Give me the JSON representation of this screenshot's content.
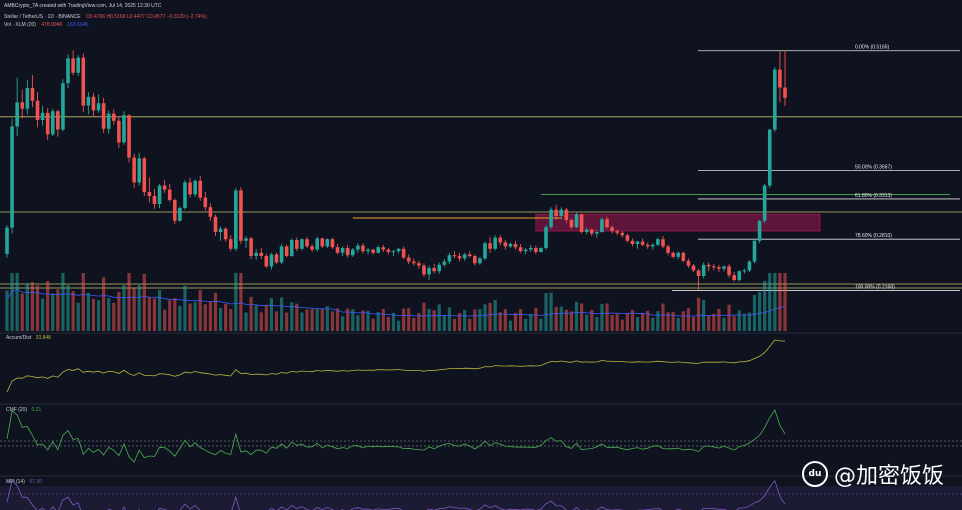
{
  "header": {
    "creator_line": "AMBCrypto_TA created with TradingView.com, Jul 14, 2025 12:30 UTC",
    "symbol_line": "Stellar / TetherUS · 1D · BINANCE",
    "ohlc": "O0.4706  H0.5166  L0.4477  C0.4577  −0.0129 (−2.74%)",
    "vol_line": "Vol · XLM (20)",
    "vol_value": "478.994K",
    "vol_ma": "163.614K"
  },
  "fib_levels": [
    {
      "label": "0.00% (0.5166)",
      "value": 0.5166
    },
    {
      "label": "50.00% (0.3667)",
      "value": 0.3667
    },
    {
      "label": "61.80% (0.3313)",
      "value": 0.3313
    },
    {
      "label": "78.60% (0.2810)",
      "value": 0.281
    },
    {
      "label": "100.00% (0.2168)",
      "value": 0.2168
    }
  ],
  "indicators": [
    {
      "label": "Accum/Dist",
      "value": "33.848"
    },
    {
      "label": "CMF (20)",
      "value": "0.21"
    },
    {
      "label": "MFI (14)",
      "value": "97.30"
    }
  ],
  "watermark": {
    "icon": "du",
    "text": "@加密饭饭"
  },
  "colors": {
    "background": "#0f1320",
    "up": "#26a69a",
    "down": "#ef5350",
    "fib_line": "#e0e0e0",
    "horizontal": "#c8c06a",
    "orange_line": "#f0a020",
    "zone": "#c2185b",
    "ad_line": "#b8b83a",
    "cmf_line": "#4caf50",
    "mfi_line": "#7e57c2",
    "vol_ma": "#3d5afe"
  },
  "chart_data": {
    "type": "candlestick",
    "candles": [
      [
        0.2625,
        0.2985,
        0.258,
        0.2955
      ],
      [
        0.2955,
        0.4315,
        0.288,
        0.422
      ],
      [
        0.422,
        0.483,
        0.41,
        0.452
      ],
      [
        0.452,
        0.468,
        0.432,
        0.444
      ],
      [
        0.444,
        0.48,
        0.437,
        0.47
      ],
      [
        0.47,
        0.486,
        0.446,
        0.454
      ],
      [
        0.454,
        0.465,
        0.421,
        0.43
      ],
      [
        0.43,
        0.448,
        0.423,
        0.439
      ],
      [
        0.439,
        0.445,
        0.405,
        0.412
      ],
      [
        0.412,
        0.444,
        0.41,
        0.441
      ],
      [
        0.441,
        0.443,
        0.409,
        0.418
      ],
      [
        0.418,
        0.481,
        0.416,
        0.476
      ],
      [
        0.476,
        0.512,
        0.47,
        0.507
      ],
      [
        0.507,
        0.517,
        0.486,
        0.489
      ],
      [
        0.489,
        0.511,
        0.485,
        0.508
      ],
      [
        0.508,
        0.513,
        0.44,
        0.448
      ],
      [
        0.448,
        0.465,
        0.437,
        0.459
      ],
      [
        0.459,
        0.464,
        0.435,
        0.442
      ],
      [
        0.442,
        0.462,
        0.439,
        0.451
      ],
      [
        0.451,
        0.458,
        0.414,
        0.419
      ],
      [
        0.419,
        0.442,
        0.413,
        0.438
      ],
      [
        0.438,
        0.443,
        0.424,
        0.429
      ],
      [
        0.429,
        0.434,
        0.395,
        0.402
      ],
      [
        0.402,
        0.441,
        0.399,
        0.436
      ],
      [
        0.436,
        0.437,
        0.377,
        0.383
      ],
      [
        0.383,
        0.388,
        0.345,
        0.352
      ],
      [
        0.352,
        0.389,
        0.348,
        0.382
      ],
      [
        0.382,
        0.384,
        0.335,
        0.34
      ],
      [
        0.34,
        0.358,
        0.327,
        0.335
      ],
      [
        0.335,
        0.344,
        0.319,
        0.325
      ],
      [
        0.325,
        0.35,
        0.32,
        0.348
      ],
      [
        0.348,
        0.355,
        0.339,
        0.343
      ],
      [
        0.343,
        0.35,
        0.328,
        0.33
      ],
      [
        0.33,
        0.332,
        0.3,
        0.304
      ],
      [
        0.304,
        0.322,
        0.303,
        0.32
      ],
      [
        0.32,
        0.355,
        0.318,
        0.352
      ],
      [
        0.352,
        0.358,
        0.333,
        0.337
      ],
      [
        0.337,
        0.356,
        0.334,
        0.354
      ],
      [
        0.354,
        0.36,
        0.329,
        0.333
      ],
      [
        0.333,
        0.34,
        0.317,
        0.321
      ],
      [
        0.321,
        0.326,
        0.304,
        0.309
      ],
      [
        0.309,
        0.312,
        0.285,
        0.29
      ],
      [
        0.29,
        0.297,
        0.279,
        0.294
      ],
      [
        0.294,
        0.296,
        0.278,
        0.281
      ],
      [
        0.281,
        0.286,
        0.266,
        0.269
      ],
      [
        0.269,
        0.345,
        0.266,
        0.342
      ],
      [
        0.342,
        0.346,
        0.275,
        0.279
      ],
      [
        0.279,
        0.285,
        0.27,
        0.282
      ],
      [
        0.282,
        0.284,
        0.256,
        0.26
      ],
      [
        0.26,
        0.269,
        0.255,
        0.264
      ],
      [
        0.264,
        0.27,
        0.256,
        0.26
      ],
      [
        0.26,
        0.263,
        0.245,
        0.247
      ],
      [
        0.247,
        0.264,
        0.243,
        0.262
      ],
      [
        0.262,
        0.264,
        0.25,
        0.252
      ],
      [
        0.252,
        0.275,
        0.25,
        0.272
      ],
      [
        0.272,
        0.274,
        0.258,
        0.26
      ],
      [
        0.26,
        0.282,
        0.259,
        0.28
      ],
      [
        0.28,
        0.283,
        0.266,
        0.269
      ],
      [
        0.269,
        0.282,
        0.267,
        0.281
      ],
      [
        0.281,
        0.284,
        0.27,
        0.272
      ],
      [
        0.272,
        0.275,
        0.265,
        0.268
      ],
      [
        0.268,
        0.284,
        0.266,
        0.282
      ],
      [
        0.282,
        0.283,
        0.27,
        0.272
      ],
      [
        0.272,
        0.282,
        0.27,
        0.281
      ],
      [
        0.281,
        0.283,
        0.269,
        0.271
      ],
      [
        0.271,
        0.275,
        0.262,
        0.264
      ],
      [
        0.264,
        0.272,
        0.26,
        0.27
      ],
      [
        0.27,
        0.274,
        0.258,
        0.261
      ],
      [
        0.261,
        0.27,
        0.259,
        0.268
      ],
      [
        0.268,
        0.276,
        0.264,
        0.273
      ],
      [
        0.273,
        0.276,
        0.263,
        0.266
      ],
      [
        0.266,
        0.27,
        0.262,
        0.268
      ],
      [
        0.268,
        0.269,
        0.262,
        0.264
      ],
      [
        0.264,
        0.273,
        0.263,
        0.271
      ],
      [
        0.271,
        0.274,
        0.265,
        0.268
      ],
      [
        0.268,
        0.27,
        0.262,
        0.265
      ],
      [
        0.265,
        0.268,
        0.26,
        0.266
      ],
      [
        0.266,
        0.27,
        0.263,
        0.269
      ],
      [
        0.269,
        0.272,
        0.256,
        0.258
      ],
      [
        0.258,
        0.262,
        0.25,
        0.253
      ],
      [
        0.253,
        0.257,
        0.248,
        0.251
      ],
      [
        0.251,
        0.254,
        0.244,
        0.248
      ],
      [
        0.248,
        0.251,
        0.234,
        0.237
      ],
      [
        0.237,
        0.248,
        0.23,
        0.245
      ],
      [
        0.245,
        0.25,
        0.238,
        0.241
      ],
      [
        0.241,
        0.252,
        0.238,
        0.249
      ],
      [
        0.249,
        0.256,
        0.246,
        0.253
      ],
      [
        0.253,
        0.264,
        0.25,
        0.261
      ],
      [
        0.261,
        0.266,
        0.257,
        0.26
      ],
      [
        0.26,
        0.264,
        0.253,
        0.257
      ],
      [
        0.257,
        0.264,
        0.254,
        0.262
      ],
      [
        0.262,
        0.266,
        0.258,
        0.26
      ],
      [
        0.26,
        0.262,
        0.248,
        0.251
      ],
      [
        0.251,
        0.259,
        0.249,
        0.257
      ],
      [
        0.257,
        0.278,
        0.255,
        0.276
      ],
      [
        0.276,
        0.284,
        0.264,
        0.269
      ],
      [
        0.269,
        0.286,
        0.267,
        0.283
      ],
      [
        0.283,
        0.286,
        0.273,
        0.277
      ],
      [
        0.277,
        0.28,
        0.268,
        0.272
      ],
      [
        0.272,
        0.277,
        0.27,
        0.275
      ],
      [
        0.275,
        0.279,
        0.268,
        0.271
      ],
      [
        0.271,
        0.275,
        0.264,
        0.266
      ],
      [
        0.266,
        0.27,
        0.262,
        0.268
      ],
      [
        0.268,
        0.274,
        0.265,
        0.27
      ],
      [
        0.27,
        0.273,
        0.262,
        0.265
      ],
      [
        0.265,
        0.271,
        0.264,
        0.27
      ],
      [
        0.27,
        0.299,
        0.268,
        0.296
      ],
      [
        0.296,
        0.321,
        0.294,
        0.318
      ],
      [
        0.318,
        0.324,
        0.305,
        0.31
      ],
      [
        0.31,
        0.321,
        0.306,
        0.318
      ],
      [
        0.318,
        0.32,
        0.301,
        0.305
      ],
      [
        0.305,
        0.307,
        0.294,
        0.296
      ],
      [
        0.296,
        0.314,
        0.295,
        0.312
      ],
      [
        0.312,
        0.313,
        0.288,
        0.29
      ],
      [
        0.29,
        0.295,
        0.287,
        0.293
      ],
      [
        0.293,
        0.294,
        0.285,
        0.288
      ],
      [
        0.288,
        0.292,
        0.283,
        0.29
      ],
      [
        0.29,
        0.308,
        0.289,
        0.306
      ],
      [
        0.306,
        0.309,
        0.294,
        0.296
      ],
      [
        0.296,
        0.298,
        0.288,
        0.291
      ],
      [
        0.291,
        0.293,
        0.286,
        0.289
      ],
      [
        0.289,
        0.291,
        0.283,
        0.286
      ],
      [
        0.286,
        0.288,
        0.277,
        0.279
      ],
      [
        0.279,
        0.282,
        0.272,
        0.275
      ],
      [
        0.275,
        0.279,
        0.269,
        0.278
      ],
      [
        0.278,
        0.282,
        0.272,
        0.274
      ],
      [
        0.274,
        0.277,
        0.269,
        0.272
      ],
      [
        0.272,
        0.276,
        0.268,
        0.274
      ],
      [
        0.274,
        0.283,
        0.272,
        0.281
      ],
      [
        0.281,
        0.285,
        0.27,
        0.272
      ],
      [
        0.272,
        0.274,
        0.261,
        0.264
      ],
      [
        0.264,
        0.266,
        0.257,
        0.259
      ],
      [
        0.259,
        0.266,
        0.256,
        0.264
      ],
      [
        0.264,
        0.265,
        0.252,
        0.254
      ],
      [
        0.254,
        0.257,
        0.245,
        0.248
      ],
      [
        0.248,
        0.25,
        0.24,
        0.242
      ],
      [
        0.242,
        0.244,
        0.217,
        0.235
      ],
      [
        0.235,
        0.252,
        0.232,
        0.249
      ],
      [
        0.249,
        0.252,
        0.241,
        0.247
      ],
      [
        0.247,
        0.25,
        0.242,
        0.246
      ],
      [
        0.246,
        0.249,
        0.24,
        0.244
      ],
      [
        0.244,
        0.248,
        0.241,
        0.247
      ],
      [
        0.247,
        0.25,
        0.233,
        0.236
      ],
      [
        0.236,
        0.24,
        0.228,
        0.23
      ],
      [
        0.23,
        0.242,
        0.228,
        0.241
      ],
      [
        0.241,
        0.244,
        0.238,
        0.242
      ],
      [
        0.242,
        0.255,
        0.24,
        0.253
      ],
      [
        0.253,
        0.281,
        0.251,
        0.279
      ],
      [
        0.279,
        0.305,
        0.276,
        0.304
      ],
      [
        0.304,
        0.35,
        0.301,
        0.348
      ],
      [
        0.348,
        0.419,
        0.345,
        0.418
      ],
      [
        0.418,
        0.496,
        0.415,
        0.493
      ],
      [
        0.493,
        0.5166,
        0.452,
        0.4706
      ],
      [
        0.4706,
        0.5166,
        0.4477,
        0.4577
      ]
    ],
    "y_range": [
      0.205,
      0.53
    ],
    "horizontal_levels": [
      0.434,
      0.315,
      0.225,
      0.22
    ],
    "supply_zone": [
      0.306,
      0.3
    ],
    "accum_dist_value": "33.848",
    "cmf_value": "0.21",
    "mfi_value": "97.30"
  }
}
